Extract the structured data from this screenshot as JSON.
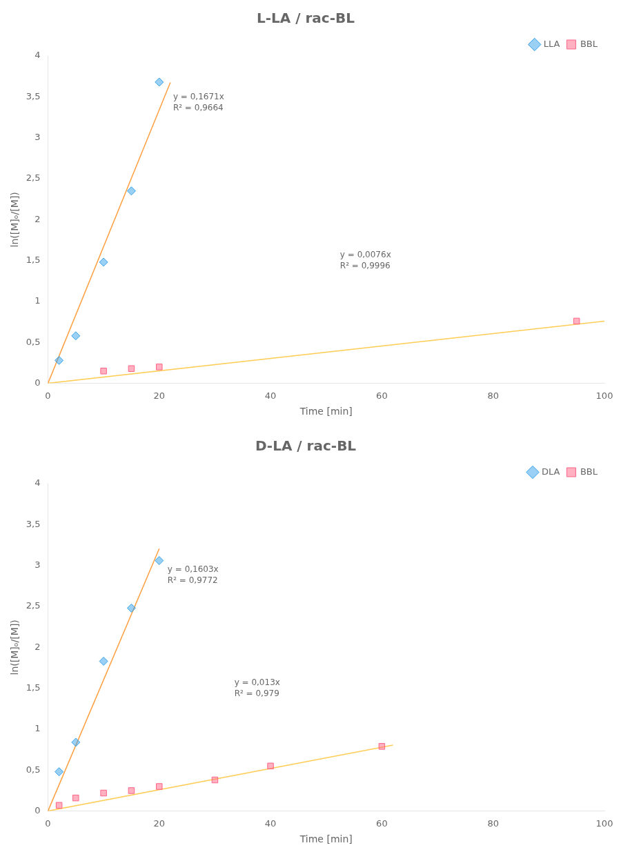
{
  "chart_data": [
    {
      "type": "scatter",
      "title": "L-LA / rac-BL",
      "xlabel": "Time [min]",
      "ylabel": "ln([M]ₒ/[M])",
      "series": [
        {
          "name": "LLA",
          "marker": "diamond",
          "x": [
            2,
            5,
            10,
            15,
            20
          ],
          "values": [
            0.28,
            0.58,
            1.48,
            2.35,
            3.68
          ]
        },
        {
          "name": "BBL",
          "marker": "square",
          "x": [
            10,
            15,
            20,
            95
          ],
          "values": [
            0.15,
            0.18,
            0.2,
            0.76
          ]
        },
        {
          "type": "line",
          "line_style": "solid",
          "x": [
            0,
            22
          ],
          "values": [
            0,
            3.6762
          ]
        },
        {
          "type": "line",
          "line_style": "solid",
          "x": [
            0,
            100
          ],
          "values": [
            0,
            0.76
          ]
        }
      ],
      "annotations": [
        {
          "text": "y = 0,1671x\nR² = 0,9664",
          "x": 22,
          "y": 3.55
        },
        {
          "text": "y = 0,0076x\nR² = 0,9996",
          "x": 52,
          "y": 1.62
        }
      ],
      "xlim": [
        0,
        100
      ],
      "xticks": [
        0,
        20,
        40,
        60,
        80,
        100
      ],
      "ylim": [
        0,
        4
      ],
      "yticks": [
        0,
        {
          "value": 0.5,
          "label": "0,5"
        },
        1,
        {
          "value": 1.5,
          "label": "1,5"
        },
        2,
        {
          "value": 2.5,
          "label": "2,5"
        },
        3,
        {
          "value": 3.5,
          "label": "3,5"
        },
        4
      ],
      "grid": false,
      "legend": "upper right"
    },
    {
      "type": "scatter",
      "title": "D-LA / rac-BL",
      "xlabel": "Time [min]",
      "ylabel": "ln([M]ₒ/[M])",
      "series": [
        {
          "name": "DLA",
          "marker": "diamond",
          "x": [
            2,
            5,
            10,
            15,
            20
          ],
          "values": [
            0.48,
            0.84,
            1.83,
            2.48,
            3.06
          ]
        },
        {
          "name": "BBL",
          "marker": "square",
          "x": [
            2,
            5,
            10,
            15,
            20,
            30,
            40,
            60
          ],
          "values": [
            0.07,
            0.16,
            0.22,
            0.25,
            0.3,
            0.38,
            0.55,
            0.79
          ]
        },
        {
          "type": "line",
          "line_style": "solid",
          "x": [
            0,
            20
          ],
          "values": [
            0,
            3.206
          ]
        },
        {
          "type": "line",
          "line_style": "solid",
          "x": [
            0,
            62
          ],
          "values": [
            0,
            0.806
          ]
        }
      ],
      "annotations": [
        {
          "text": "y = 0,1603x\nR² = 0,9772",
          "x": 21,
          "y": 3.0
        },
        {
          "text": "y = 0,013x\nR² = 0,979",
          "x": 33,
          "y": 1.62
        }
      ],
      "xlim": [
        0,
        100
      ],
      "xticks": [
        0,
        20,
        40,
        60,
        80,
        100
      ],
      "ylim": [
        0,
        4
      ],
      "yticks": [
        0,
        {
          "value": 0.5,
          "label": "0,5"
        },
        1,
        {
          "value": 1.5,
          "label": "1,5"
        },
        2,
        {
          "value": 2.5,
          "label": "2,5"
        },
        3,
        {
          "value": 3.5,
          "label": "3,5"
        },
        4
      ],
      "grid": false,
      "legend": "upper right"
    }
  ]
}
